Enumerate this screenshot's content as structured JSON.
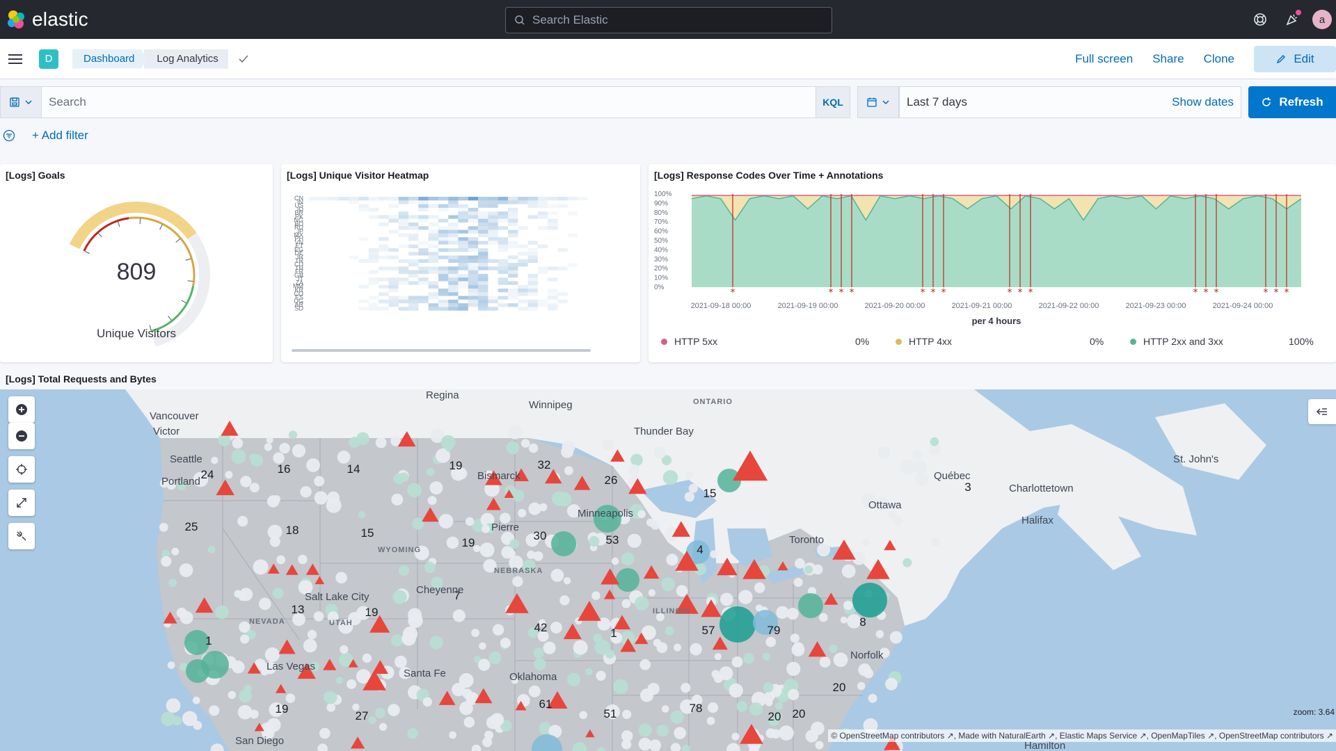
{
  "header": {
    "brand": "elastic",
    "search_placeholder": "Search Elastic",
    "avatar_letter": "a"
  },
  "nav": {
    "space_letter": "D",
    "breadcrumb": [
      "Dashboard",
      "Log Analytics"
    ],
    "actions": [
      "Full screen",
      "Share",
      "Clone"
    ],
    "edit_label": "Edit"
  },
  "query": {
    "placeholder": "Search",
    "language": "KQL",
    "date_range": "Last 7 days",
    "show_dates": "Show dates",
    "refresh": "Refresh",
    "add_filter": "+ Add filter"
  },
  "panels": {
    "goals": {
      "title": "[Logs] Goals",
      "value": "809",
      "label": "Unique Visitors",
      "gauge_fraction": 0.52
    },
    "heatmap": {
      "title": "[Logs] Unique Visitor Heatmap",
      "row_labels": [
        "CN",
        "IN",
        "US",
        "ID",
        "BR",
        "PK",
        "NG",
        "BD",
        "RU",
        "JP",
        "MX",
        "PH",
        "VN",
        "ET",
        "EG",
        "DE",
        "IR",
        "TR",
        "CD",
        "TH",
        "FR",
        "GB",
        "IT",
        "ZA",
        "MM",
        "KR",
        "CO",
        "ES",
        "UG",
        "AR",
        "SD"
      ]
    },
    "tsvb": {
      "title": "[Logs] Response Codes Over Time + Annotations",
      "y_ticks": [
        "100%",
        "90%",
        "80%",
        "70%",
        "60%",
        "50%",
        "40%",
        "30%",
        "20%",
        "10%",
        "0%"
      ],
      "x_ticks": [
        "2021-09-18 00:00",
        "2021-09-19 00:00",
        "2021-09-20 00:00",
        "2021-09-21 00:00",
        "2021-09-22 00:00",
        "2021-09-23 00:00",
        "2021-09-24 00:00"
      ],
      "interval_label": "per 4 hours",
      "legend": [
        {
          "name": "HTTP 5xx",
          "value": "0%",
          "color": "#d36086"
        },
        {
          "name": "HTTP 4xx",
          "value": "0%",
          "color": "#d6bf57"
        },
        {
          "name": "HTTP 2xx and 3xx",
          "value": "100%",
          "color": "#54b399"
        }
      ]
    },
    "map": {
      "title": "[Logs] Total Requests and Bytes",
      "zoom_label": "zoom: 3.64",
      "attribution": "© OpenStreetMap contributors ↗, Made with NaturalEarth ↗, Elastic Maps Service ↗, OpenMapTiles ↗, OpenStreetMap contributors ↗",
      "places": [
        "Regina",
        "Winnipeg",
        "ONTARIO",
        "Vancouver",
        "Victor",
        "Seattle",
        "Portland",
        "Thunder Bay",
        "St. John's",
        "Québec",
        "Charlottetown",
        "Halifax",
        "Ottawa",
        "Toronto",
        "Bismarck",
        "Minneapolis",
        "Pierre",
        "WYOMING",
        "NEBRASKA",
        "Cheyenne",
        "Salt Lake City",
        "NEVADA",
        "UTAH",
        "ILLINOIS",
        "Las Vegas",
        "Santa Fe",
        "Oklahoma",
        "San Diego",
        "Norfolk",
        "Hamilton"
      ],
      "cluster_counts": [
        "24",
        "16",
        "14",
        "19",
        "32",
        "26",
        "15",
        "3",
        "25",
        "18",
        "15",
        "30",
        "53",
        "4",
        "19",
        "7",
        "13",
        "19",
        "42",
        "1",
        "57",
        "79",
        "8",
        "20",
        "19",
        "27",
        "61",
        "51",
        "78",
        "20",
        "20",
        "1"
      ]
    }
  }
}
